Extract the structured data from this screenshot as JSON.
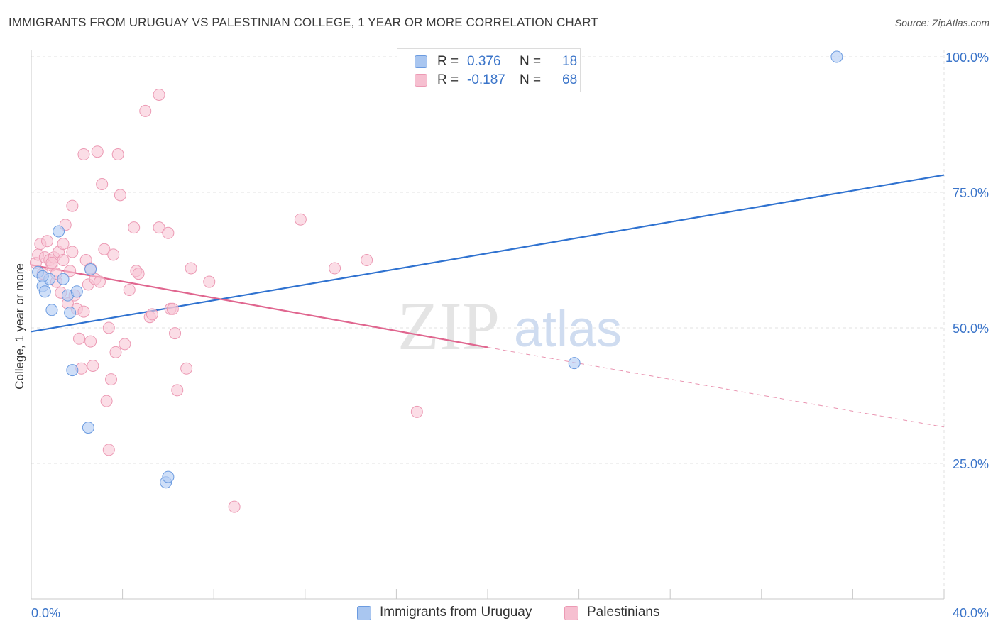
{
  "header": {
    "title": "IMMIGRANTS FROM URUGUAY VS PALESTINIAN COLLEGE, 1 YEAR OR MORE CORRELATION CHART",
    "source": "Source: ZipAtlas.com"
  },
  "watermark": {
    "zip": "ZIP",
    "atlas": "atlas"
  },
  "legend": {
    "rows": [
      {
        "r_label": "R =",
        "r_value": "0.376",
        "n_label": "N =",
        "n_value": "18",
        "color": "#a9c6f0"
      },
      {
        "r_label": "R =",
        "r_value": "-0.187",
        "n_label": "N =",
        "n_value": "68",
        "color": "#f6bfd0"
      }
    ]
  },
  "bottom_legend": {
    "items": [
      {
        "label": "Immigrants from Uruguay",
        "color": "#a9c6f0"
      },
      {
        "label": "Palestinians",
        "color": "#f6bfd0"
      }
    ]
  },
  "colors": {
    "blue_point_fill": "#b5cef4",
    "blue_point_stroke": "#6b9be0",
    "blue_line": "#2f72d0",
    "pink_point_fill": "#f8c7d6",
    "pink_point_stroke": "#ec9ab4",
    "pink_line": "#e0668f",
    "tick_label": "#3a74c9",
    "grid": "#e0e0e0"
  },
  "chart_data": {
    "type": "scatter",
    "title": "IMMIGRANTS FROM URUGUAY VS PALESTINIAN COLLEGE, 1 YEAR OR MORE CORRELATION CHART",
    "xlabel": "",
    "ylabel": "College, 1 year or more",
    "xlim": [
      0,
      40
    ],
    "ylim": [
      0,
      105
    ],
    "x_tick_labels": [
      "0.0%",
      "40.0%"
    ],
    "y_ticks": [
      25,
      50,
      75,
      100
    ],
    "y_tick_labels": [
      "25.0%",
      "50.0%",
      "75.0%",
      "100.0%"
    ],
    "grid": true,
    "series": [
      {
        "name": "Immigrants from Uruguay",
        "r": 0.376,
        "n": 18,
        "points": [
          [
            0.3,
            60.3
          ],
          [
            0.5,
            57.7
          ],
          [
            0.6,
            56.7
          ],
          [
            0.8,
            59.0
          ],
          [
            0.9,
            53.3
          ],
          [
            1.2,
            67.8
          ],
          [
            1.4,
            59.0
          ],
          [
            1.6,
            56.0
          ],
          [
            1.7,
            52.8
          ],
          [
            1.8,
            42.2
          ],
          [
            2.0,
            56.7
          ],
          [
            2.5,
            31.6
          ],
          [
            2.6,
            60.8
          ],
          [
            5.9,
            21.5
          ],
          [
            6.0,
            22.5
          ],
          [
            0.5,
            59.5
          ],
          [
            23.8,
            43.5
          ],
          [
            35.3,
            100.0
          ]
        ],
        "trend": {
          "x": [
            0,
            40
          ],
          "y": [
            49.3,
            78.2
          ]
        }
      },
      {
        "name": "Palestinians",
        "r": -0.187,
        "n": 68,
        "points": [
          [
            0.2,
            62.0
          ],
          [
            0.3,
            63.5
          ],
          [
            0.4,
            65.5
          ],
          [
            0.5,
            60.0
          ],
          [
            0.6,
            63.0
          ],
          [
            0.7,
            66.0
          ],
          [
            0.8,
            62.5
          ],
          [
            0.9,
            61.5
          ],
          [
            1.0,
            63.0
          ],
          [
            1.1,
            58.5
          ],
          [
            1.2,
            64.0
          ],
          [
            1.3,
            56.5
          ],
          [
            1.4,
            62.5
          ],
          [
            1.5,
            69.0
          ],
          [
            1.6,
            54.5
          ],
          [
            1.7,
            60.5
          ],
          [
            1.8,
            64.0
          ],
          [
            1.8,
            72.5
          ],
          [
            1.9,
            56.0
          ],
          [
            2.0,
            53.5
          ],
          [
            2.1,
            48.0
          ],
          [
            2.2,
            42.5
          ],
          [
            2.3,
            82.0
          ],
          [
            2.4,
            62.5
          ],
          [
            2.5,
            58.0
          ],
          [
            2.6,
            61.0
          ],
          [
            2.6,
            47.5
          ],
          [
            2.7,
            43.0
          ],
          [
            2.8,
            59.0
          ],
          [
            2.9,
            82.5
          ],
          [
            3.0,
            58.5
          ],
          [
            3.1,
            76.5
          ],
          [
            3.2,
            64.5
          ],
          [
            3.3,
            36.5
          ],
          [
            3.4,
            27.5
          ],
          [
            3.4,
            50.0
          ],
          [
            3.5,
            40.5
          ],
          [
            3.6,
            63.5
          ],
          [
            3.7,
            45.5
          ],
          [
            3.8,
            82.0
          ],
          [
            3.9,
            74.5
          ],
          [
            4.1,
            47.0
          ],
          [
            4.3,
            57.0
          ],
          [
            4.5,
            68.5
          ],
          [
            4.6,
            60.5
          ],
          [
            4.7,
            60.0
          ],
          [
            5.0,
            90.0
          ],
          [
            5.2,
            52.0
          ],
          [
            5.3,
            52.5
          ],
          [
            5.6,
            93.0
          ],
          [
            5.6,
            68.5
          ],
          [
            6.0,
            67.5
          ],
          [
            6.1,
            53.5
          ],
          [
            6.2,
            53.5
          ],
          [
            6.3,
            49.0
          ],
          [
            6.4,
            38.5
          ],
          [
            6.8,
            42.5
          ],
          [
            7.0,
            61.0
          ],
          [
            7.8,
            58.5
          ],
          [
            8.9,
            17.0
          ],
          [
            11.8,
            70.0
          ],
          [
            13.3,
            61.0
          ],
          [
            14.7,
            62.5
          ],
          [
            16.9,
            34.5
          ],
          [
            1.1,
            60.0
          ],
          [
            0.9,
            62.0
          ],
          [
            2.3,
            53.0
          ],
          [
            1.4,
            65.5
          ]
        ],
        "trend": {
          "x": [
            0,
            20
          ],
          "y": [
            61.6,
            46.4
          ]
        },
        "trend_dashed": {
          "x": [
            20,
            40
          ],
          "y": [
            46.4,
            31.7
          ]
        }
      }
    ]
  }
}
